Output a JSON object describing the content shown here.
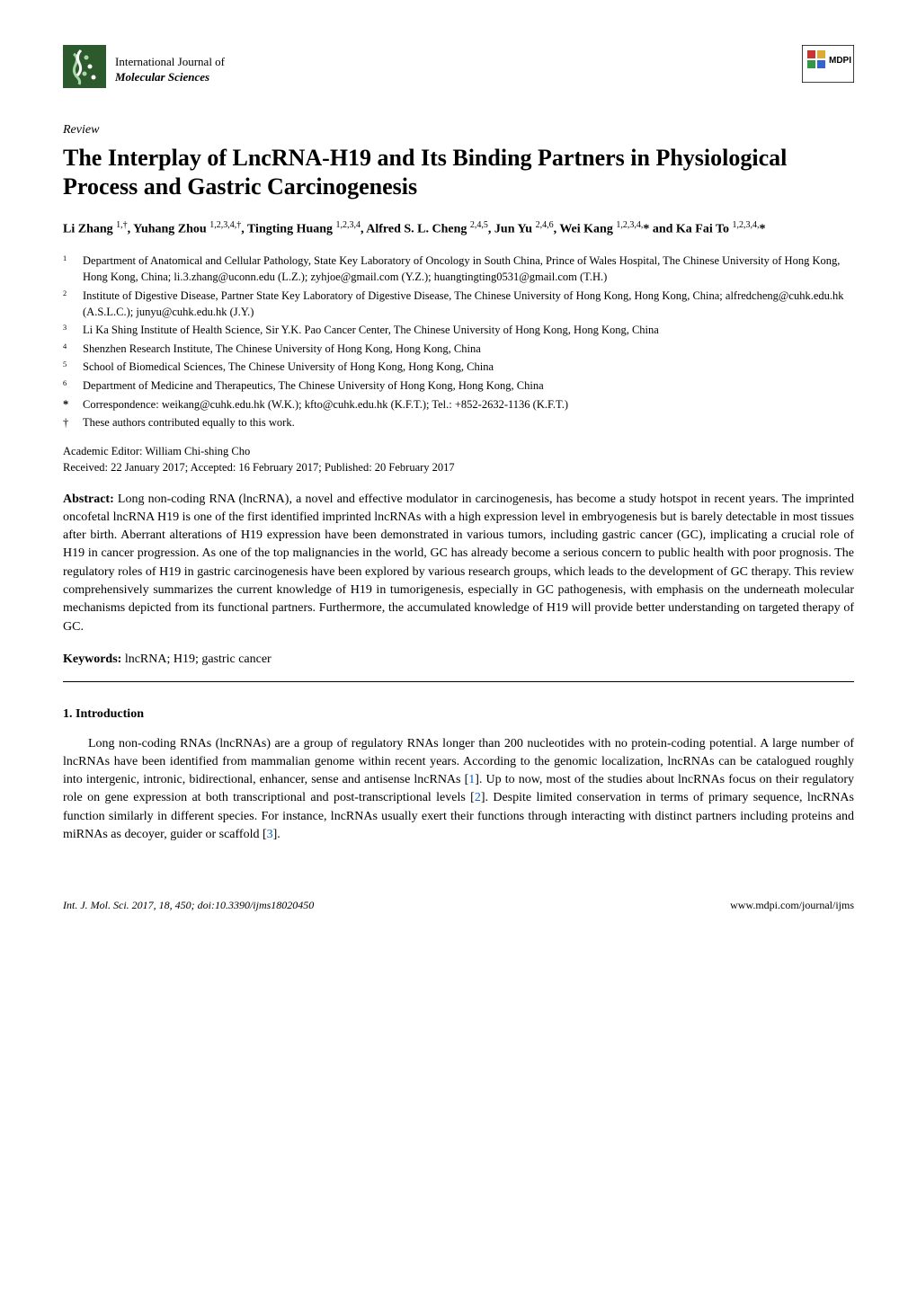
{
  "header": {
    "journal_line1": "International Journal of",
    "journal_line2": "Molecular Sciences",
    "publisher": "MDPI"
  },
  "article": {
    "type": "Review",
    "title": "The Interplay of LncRNA-H19 and Its Binding Partners in Physiological Process and Gastric Carcinogenesis",
    "authors_html": "Li Zhang <sup>1,†</sup>, Yuhang Zhou <sup>1,2,3,4,†</sup>, Tingting Huang <sup>1,2,3,4</sup>, Alfred S. L. Cheng <sup>2,4,5</sup>, Jun Yu <sup>2,4,6</sup>, Wei Kang <sup>1,2,3,4,</sup>* and Ka Fai To <sup>1,2,3,4,</sup>*",
    "affiliations": [
      {
        "num": "1",
        "text": "Department of Anatomical and Cellular Pathology, State Key Laboratory of Oncology in South China, Prince of Wales Hospital, The Chinese University of Hong Kong, Hong Kong, China; li.3.zhang@uconn.edu (L.Z.); zyhjoe@gmail.com (Y.Z.); huangtingting0531@gmail.com (T.H.)"
      },
      {
        "num": "2",
        "text": "Institute of Digestive Disease, Partner State Key Laboratory of Digestive Disease, The Chinese University of Hong Kong, Hong Kong, China; alfredcheng@cuhk.edu.hk (A.S.L.C.); junyu@cuhk.edu.hk (J.Y.)"
      },
      {
        "num": "3",
        "text": "Li Ka Shing Institute of Health Science, Sir Y.K. Pao Cancer Center, The Chinese University of Hong Kong, Hong Kong, China"
      },
      {
        "num": "4",
        "text": "Shenzhen Research Institute, The Chinese University of Hong Kong, Hong Kong, China"
      },
      {
        "num": "5",
        "text": "School of Biomedical Sciences, The Chinese University of Hong Kong, Hong Kong, China"
      },
      {
        "num": "6",
        "text": "Department of Medicine and Therapeutics, The Chinese University of Hong Kong, Hong Kong, China"
      }
    ],
    "correspondence": "Correspondence: weikang@cuhk.edu.hk (W.K.); kfto@cuhk.edu.hk (K.F.T.); Tel.: +852-2632-1136 (K.F.T.)",
    "contribution": "These authors contributed equally to this work.",
    "editor": "Academic Editor: William Chi-shing Cho",
    "dates": "Received: 22 January 2017; Accepted: 16 February 2017; Published: 20 February 2017",
    "abstract_label": "Abstract:",
    "abstract": "Long non-coding RNA (lncRNA), a novel and effective modulator in carcinogenesis, has become a study hotspot in recent years. The imprinted oncofetal lncRNA H19 is one of the first identified imprinted lncRNAs with a high expression level in embryogenesis but is barely detectable in most tissues after birth. Aberrant alterations of H19 expression have been demonstrated in various tumors, including gastric cancer (GC), implicating a crucial role of H19 in cancer progression. As one of the top malignancies in the world, GC has already become a serious concern to public health with poor prognosis. The regulatory roles of H19 in gastric carcinogenesis have been explored by various research groups, which leads to the development of GC therapy. This review comprehensively summarizes the current knowledge of H19 in tumorigenesis, especially in GC pathogenesis, with emphasis on the underneath molecular mechanisms depicted from its functional partners. Furthermore, the accumulated knowledge of H19 will provide better understanding on targeted therapy of GC.",
    "keywords_label": "Keywords:",
    "keywords": "lncRNA; H19; gastric cancer"
  },
  "section": {
    "heading": "1. Introduction",
    "paragraph": "Long non-coding RNAs (lncRNAs) are a group of regulatory RNAs longer than 200 nucleotides with no protein-coding potential. A large number of lncRNAs have been identified from mammalian genome within recent years. According to the genomic localization, lncRNAs can be catalogued roughly into intergenic, intronic, bidirectional, enhancer, sense and antisense lncRNAs [1]. Up to now, most of the studies about lncRNAs focus on their regulatory role on gene expression at both transcriptional and post-transcriptional levels [2]. Despite limited conservation in terms of primary sequence, lncRNAs function similarly in different species. For instance, lncRNAs usually exert their functions through interacting with distinct partners including proteins and miRNAs as decoyer, guider or scaffold [3]."
  },
  "footer": {
    "left": "Int. J. Mol. Sci. 2017, 18, 450; doi:10.3390/ijms18020450",
    "right": "www.mdpi.com/journal/ijms"
  },
  "colors": {
    "text": "#000000",
    "background": "#ffffff",
    "link": "#0066cc",
    "logo_left_bg": "#3d6b3d",
    "logo_right_border": "#000000"
  }
}
